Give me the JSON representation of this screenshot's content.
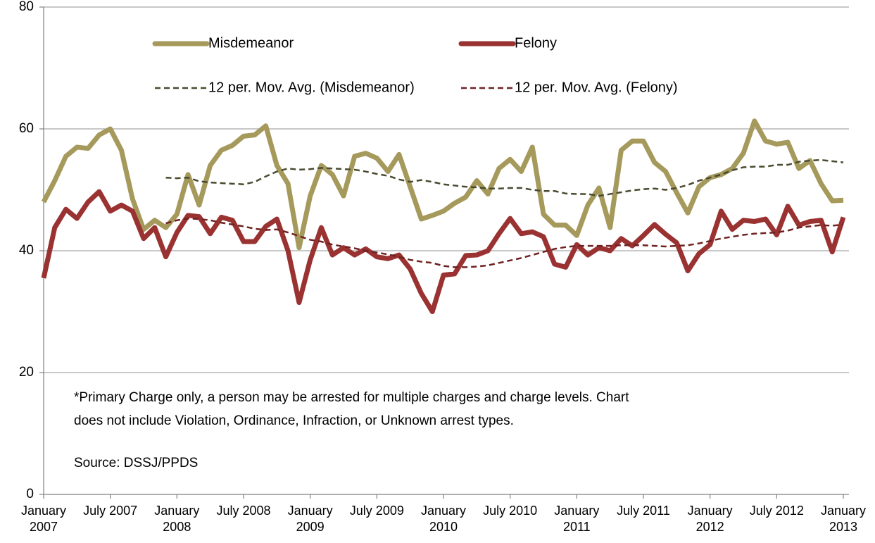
{
  "chart_data": {
    "type": "line",
    "categories": [
      "January 2007",
      null,
      null,
      null,
      null,
      null,
      "July 2007",
      null,
      null,
      null,
      null,
      null,
      "January 2008",
      null,
      null,
      null,
      null,
      null,
      "July 2008",
      null,
      null,
      null,
      null,
      null,
      "January 2009",
      null,
      null,
      null,
      null,
      null,
      "July 2009",
      null,
      null,
      null,
      null,
      null,
      "January 2010",
      null,
      null,
      null,
      null,
      null,
      "July 2010",
      null,
      null,
      null,
      null,
      null,
      "January 2011",
      null,
      null,
      null,
      null,
      null,
      "July 2011",
      null,
      null,
      null,
      null,
      null,
      "January 2012",
      null,
      null,
      null,
      null,
      null,
      "July 2012",
      null,
      null,
      null,
      null,
      null,
      "January 2013"
    ],
    "series": [
      {
        "name": "Misdemeanor",
        "color": "#a59a5c",
        "style": "solid",
        "values": [
          48,
          51.5,
          55.5,
          57,
          56.8,
          59,
          60,
          56.5,
          48.5,
          43.5,
          45,
          43.8,
          46,
          52.5,
          47.5,
          54,
          56.5,
          57.3,
          58.8,
          59,
          60.5,
          54,
          51,
          40.5,
          49,
          54,
          52.5,
          49,
          55.5,
          56,
          55.2,
          53,
          55.8,
          50.5,
          45.2,
          45.8,
          46.5,
          47.8,
          48.8,
          51.5,
          49.3,
          53.5,
          55,
          53,
          57,
          46,
          44.2,
          44.2,
          42.5,
          47.5,
          50.3,
          43.8,
          56.5,
          58,
          58,
          54.5,
          53,
          49.5,
          46.2,
          50.5,
          52,
          52.5,
          53.5,
          56,
          61.3,
          58,
          57.5,
          57.8,
          53.5,
          54.8,
          51,
          48.2,
          48.3
        ]
      },
      {
        "name": "Felony",
        "color": "#9a3232",
        "style": "solid",
        "values": [
          35.5,
          43.8,
          46.8,
          45.3,
          48,
          49.7,
          46.5,
          47.5,
          46.5,
          42,
          43.8,
          39,
          43,
          45.8,
          45.6,
          42.8,
          45.5,
          45,
          41.5,
          41.5,
          44,
          45.2,
          40,
          31.5,
          38.5,
          43.8,
          39.3,
          40.5,
          39.3,
          40.3,
          39,
          38.7,
          39.3,
          37,
          33,
          30,
          36,
          36.2,
          39.2,
          39.3,
          40,
          42.8,
          45.3,
          42.8,
          43.1,
          42.3,
          37.8,
          37.3,
          41,
          39.3,
          40.5,
          40,
          42,
          40.8,
          42.5,
          44.3,
          42.7,
          41.3,
          36.7,
          39.5,
          41,
          46.5,
          43.5,
          45,
          44.8,
          45.2,
          42.6,
          47.3,
          44.2,
          44.8,
          45,
          39.8,
          45.5
        ]
      },
      {
        "name": "12 per. Mov. Avg. (Misdemeanor)",
        "color": "#4a4a30",
        "style": "dashed",
        "values": [
          null,
          null,
          null,
          null,
          null,
          null,
          null,
          null,
          null,
          null,
          null,
          52,
          51.9,
          52,
          51.4,
          51.2,
          51.1,
          51,
          50.9,
          51.3,
          52.2,
          53,
          53.5,
          53.3,
          53.4,
          53.6,
          53.5,
          53.4,
          53.3,
          53,
          52.6,
          52.3,
          51.7,
          51.3,
          51.6,
          51.3,
          50.9,
          50.7,
          50.5,
          50.4,
          50.2,
          50.2,
          50.3,
          50.3,
          50,
          49.8,
          49.8,
          49.4,
          49.3,
          49.3,
          49,
          49.3,
          49.6,
          49.9,
          50.1,
          50.2,
          50,
          50.3,
          50.8,
          51.5,
          52,
          52.5,
          53.2,
          53.7,
          53.8,
          53.8,
          54.1,
          54.1,
          54.6,
          54.8,
          54.9,
          54.7,
          54.5
        ]
      },
      {
        "name": "12 per. Mov. Avg. (Felony)",
        "color": "#6e2222",
        "style": "dashed",
        "values": [
          null,
          null,
          null,
          null,
          null,
          null,
          null,
          null,
          null,
          null,
          null,
          44.5,
          45,
          45.3,
          45.2,
          45,
          44.6,
          44.3,
          44,
          43.6,
          43.4,
          43.5,
          43,
          42.4,
          41.8,
          41.5,
          41,
          40.7,
          40.4,
          40,
          39.7,
          39.4,
          39,
          38.5,
          38.2,
          38,
          37.5,
          37.3,
          37.3,
          37.4,
          37.6,
          38,
          38.4,
          38.8,
          39.3,
          39.8,
          40.3,
          40.6,
          40.8,
          40.8,
          40.8,
          40.8,
          40.9,
          40.9,
          40.9,
          40.8,
          40.7,
          40.8,
          40.9,
          41.2,
          41.6,
          42,
          42.3,
          42.6,
          42.8,
          42.9,
          43,
          43.3,
          43.8,
          44,
          44.2,
          44.1,
          44.3
        ]
      }
    ],
    "ylim": [
      0,
      80
    ],
    "yticks": [
      0,
      20,
      40,
      60,
      80
    ],
    "grid": true,
    "annotations": [
      "*Primary Charge only, a person may be arrested for multiple charges and charge levels.  Chart",
      "does not include Violation, Ordinance, Infraction, or Unknown arrest types.",
      "Source: DSSJ/PPDS"
    ]
  }
}
